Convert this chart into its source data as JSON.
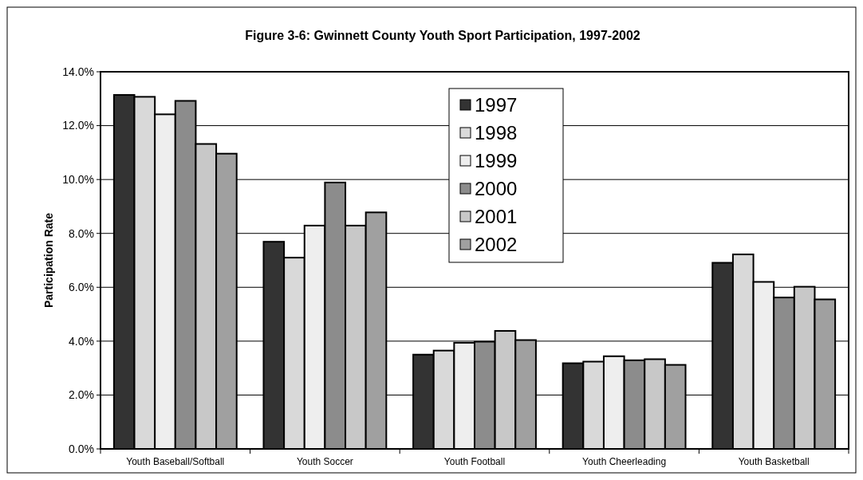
{
  "chart_data": {
    "type": "bar",
    "title": "Figure 3-6: Gwinnett County Youth Sport Participation, 1997-2002",
    "ylabel": "Participation Rate",
    "categories": [
      "Youth Baseball/Softball",
      "Youth Soccer",
      "Youth Football",
      "Youth Cheerleading",
      "Youth Basketball"
    ],
    "series": [
      {
        "name": "1997",
        "color": "#333333",
        "values": [
          13.14,
          7.69,
          3.5,
          3.18,
          6.91
        ]
      },
      {
        "name": "1998",
        "color": "#d9d9d9",
        "values": [
          13.07,
          7.1,
          3.65,
          3.24,
          7.22
        ]
      },
      {
        "name": "1999",
        "color": "#eeeeee",
        "values": [
          12.42,
          8.29,
          3.94,
          3.44,
          6.2
        ]
      },
      {
        "name": "2000",
        "color": "#8c8c8c",
        "values": [
          12.92,
          9.89,
          3.98,
          3.29,
          5.62
        ]
      },
      {
        "name": "2001",
        "color": "#c8c8c8",
        "values": [
          11.32,
          8.29,
          4.38,
          3.33,
          6.02
        ]
      },
      {
        "name": "2002",
        "color": "#a0a0a0",
        "values": [
          10.96,
          8.78,
          4.04,
          3.12,
          5.55
        ]
      }
    ],
    "ylim": [
      0,
      14
    ],
    "yticks": [
      {
        "value": 0,
        "label": "0.0%"
      },
      {
        "value": 2,
        "label": "2.0%"
      },
      {
        "value": 4,
        "label": "4.0%"
      },
      {
        "value": 6,
        "label": "6.0%"
      },
      {
        "value": 8,
        "label": "8.0%"
      },
      {
        "value": 10,
        "label": "10.0%"
      },
      {
        "value": 12,
        "label": "12.0%"
      },
      {
        "value": 14,
        "label": "14.0%"
      }
    ],
    "grid": "y",
    "legend": "top right"
  }
}
